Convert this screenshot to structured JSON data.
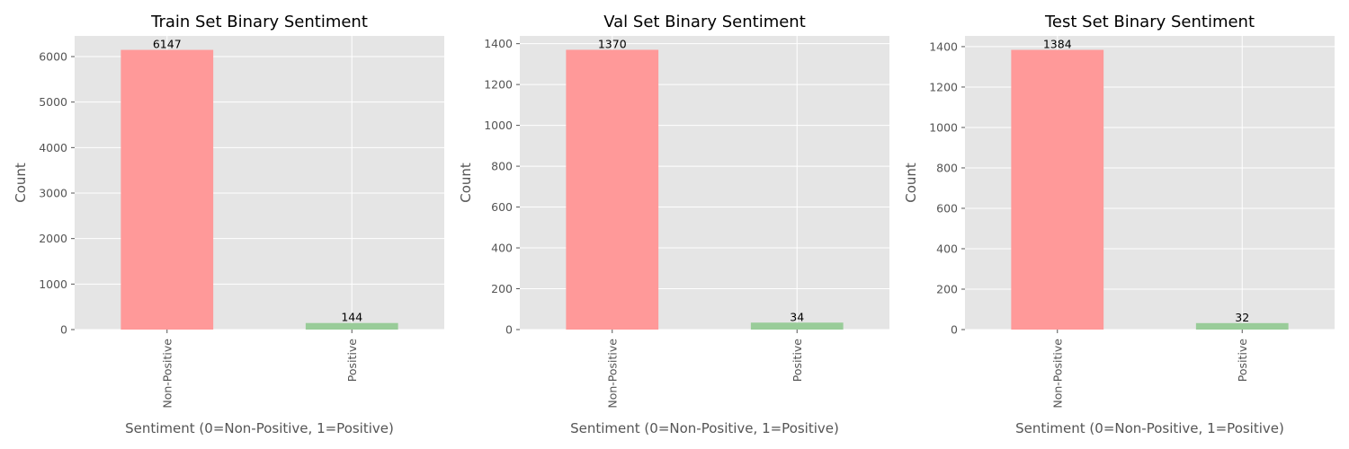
{
  "colors": {
    "panel_background": "#e5e5e5",
    "grid": "#ffffff",
    "non_positive_bar": "#ff9999",
    "positive_bar": "#99cc99"
  },
  "chart_data": [
    {
      "type": "bar",
      "title": "Train Set Binary Sentiment",
      "xlabel": "Sentiment (0=Non-Positive, 1=Positive)",
      "ylabel": "Count",
      "categories": [
        "Non-Positive",
        "Positive"
      ],
      "values": [
        6147,
        144
      ],
      "data_labels": [
        "6147",
        "144"
      ],
      "yticks": [
        0,
        1000,
        2000,
        3000,
        4000,
        5000,
        6000
      ],
      "ylim": [
        0,
        6454
      ],
      "grid": true
    },
    {
      "type": "bar",
      "title": "Val Set Binary Sentiment",
      "xlabel": "Sentiment (0=Non-Positive, 1=Positive)",
      "ylabel": "Count",
      "categories": [
        "Non-Positive",
        "Positive"
      ],
      "values": [
        1370,
        34
      ],
      "data_labels": [
        "1370",
        "34"
      ],
      "yticks": [
        0,
        200,
        400,
        600,
        800,
        1000,
        1200,
        1400
      ],
      "ylim": [
        0,
        1438
      ],
      "grid": true
    },
    {
      "type": "bar",
      "title": "Test Set Binary Sentiment",
      "xlabel": "Sentiment (0=Non-Positive, 1=Positive)",
      "ylabel": "Count",
      "categories": [
        "Non-Positive",
        "Positive"
      ],
      "values": [
        1384,
        32
      ],
      "data_labels": [
        "1384",
        "32"
      ],
      "yticks": [
        0,
        200,
        400,
        600,
        800,
        1000,
        1200,
        1400
      ],
      "ylim": [
        0,
        1453
      ],
      "grid": true
    }
  ]
}
